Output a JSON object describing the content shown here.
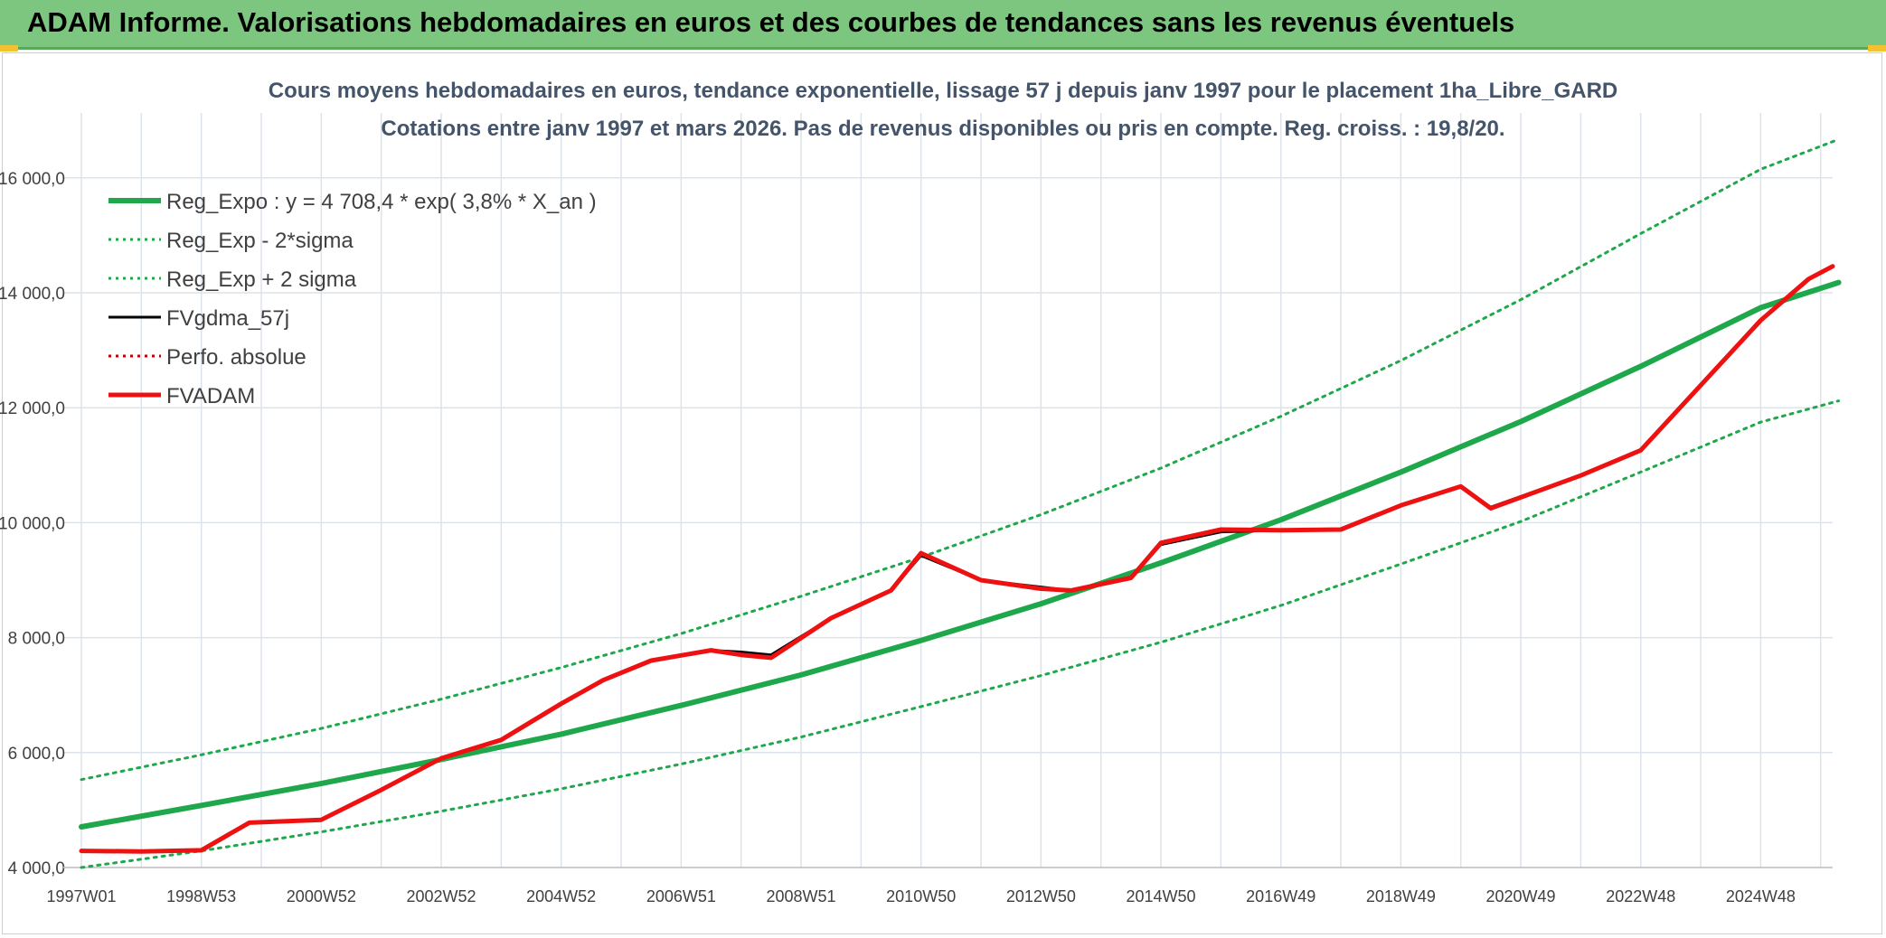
{
  "header": {
    "title": "ADAM Informe. Valorisations hebdomadaires en euros et des courbes de tendances sans les revenus éventuels",
    "bg_color": "#7dc67f",
    "accent_color": "#f2c230"
  },
  "chart_data": {
    "type": "line",
    "title_line1": "Cours moyens hebdomadaires en euros, tendance exponentielle, lissage 57 j depuis janv 1997 pour le placement 1ha_Libre_GARD",
    "title_line2": "Cotations entre janv 1997 et mars 2026. Pas de revenus disponibles ou pris en compte. Reg. croiss. : 19,8/20.",
    "xlabel": "",
    "ylabel": "",
    "xlim": [
      1997.0,
      2026.2
    ],
    "ylim": [
      4000,
      16500
    ],
    "grid": true,
    "legend_position": "top-left",
    "y_ticks": [
      {
        "value": 4000,
        "label": "4 000,0"
      },
      {
        "value": 6000,
        "label": "6 000,0"
      },
      {
        "value": 8000,
        "label": "8 000,0"
      },
      {
        "value": 10000,
        "label": "10 000,0"
      },
      {
        "value": 12000,
        "label": "12 000,0"
      },
      {
        "value": 14000,
        "label": "14 000,0"
      },
      {
        "value": 16000,
        "label": "16 000,0"
      }
    ],
    "x_ticks": [
      {
        "value": 1997.0,
        "label": "1997W01"
      },
      {
        "value": 1999.0,
        "label": "1998W53"
      },
      {
        "value": 2001.0,
        "label": "2000W52"
      },
      {
        "value": 2003.0,
        "label": "2002W52"
      },
      {
        "value": 2005.0,
        "label": "2004W52"
      },
      {
        "value": 2007.0,
        "label": "2006W51"
      },
      {
        "value": 2009.0,
        "label": "2008W51"
      },
      {
        "value": 2011.0,
        "label": "2010W50"
      },
      {
        "value": 2013.0,
        "label": "2012W50"
      },
      {
        "value": 2015.0,
        "label": "2014W50"
      },
      {
        "value": 2017.0,
        "label": "2016W49"
      },
      {
        "value": 2019.0,
        "label": "2018W49"
      },
      {
        "value": 2021.0,
        "label": "2020W49"
      },
      {
        "value": 2023.0,
        "label": "2022W48"
      },
      {
        "value": 2025.0,
        "label": "2024W48"
      }
    ],
    "x_minor_ticks": [
      1998.0,
      2000.0,
      2002.0,
      2004.0,
      2006.0,
      2008.0,
      2010.0,
      2012.0,
      2014.0,
      2016.0,
      2018.0,
      2020.0,
      2022.0,
      2024.0,
      2026.0
    ],
    "series": [
      {
        "name": "Reg_Expo : y = 4 708,4 * exp( 3,8% *  X_an )",
        "color": "#1ea84b",
        "style": "solid",
        "width": 6,
        "x": [
          1997.0,
          1999.0,
          2001.0,
          2003.0,
          2005.0,
          2007.0,
          2009.0,
          2011.0,
          2013.0,
          2015.0,
          2017.0,
          2019.0,
          2021.0,
          2023.0,
          2025.0,
          2026.3
        ],
        "values": [
          4708,
          5080,
          5460,
          5880,
          6320,
          6820,
          7350,
          7950,
          8590,
          9300,
          10050,
          10880,
          11760,
          12720,
          13740,
          14180
        ]
      },
      {
        "name": "Reg_Exp - 2*sigma",
        "color": "#1ea84b",
        "style": "dotted",
        "width": 3,
        "x": [
          1997.0,
          1999.0,
          2001.0,
          2003.0,
          2005.0,
          2007.0,
          2009.0,
          2011.0,
          2013.0,
          2015.0,
          2017.0,
          2019.0,
          2021.0,
          2023.0,
          2025.0,
          2026.3
        ],
        "values": [
          4000,
          4290,
          4620,
          4980,
          5370,
          5800,
          6270,
          6800,
          7340,
          7920,
          8560,
          9280,
          10020,
          10880,
          11750,
          12120
        ]
      },
      {
        "name": "Reg_Exp + 2 sigma",
        "color": "#1ea84b",
        "style": "dotted",
        "width": 3,
        "x": [
          1997.0,
          1999.0,
          2001.0,
          2003.0,
          2005.0,
          2007.0,
          2009.0,
          2011.0,
          2013.0,
          2015.0,
          2017.0,
          2019.0,
          2021.0,
          2023.0,
          2025.0,
          2026.3
        ],
        "values": [
          5530,
          5960,
          6420,
          6930,
          7480,
          8070,
          8720,
          9400,
          10140,
          10950,
          11850,
          12820,
          13880,
          15030,
          16150,
          16670
        ]
      },
      {
        "name": "FVgdma_57j",
        "color": "#000000",
        "style": "solid",
        "width": 3,
        "x": [
          1997.0,
          1998.0,
          1999.0,
          1999.8,
          2001.0,
          2002.0,
          2003.0,
          2004.0,
          2005.0,
          2005.7,
          2006.5,
          2007.5,
          2008.0,
          2008.5,
          2009.5,
          2010.5,
          2011.0,
          2012.0,
          2013.0,
          2013.5,
          2014.5,
          2015.0,
          2016.0,
          2017.0,
          2018.0,
          2019.0,
          2020.0,
          2020.5,
          2022.0,
          2023.0,
          2025.0,
          2025.8,
          2026.2
        ],
        "values": [
          4290,
          4280,
          4300,
          4780,
          4830,
          5350,
          5900,
          6220,
          6850,
          7260,
          7600,
          7780,
          7750,
          7700,
          8340,
          8820,
          9430,
          9000,
          8880,
          8820,
          9040,
          9620,
          9840,
          9870,
          9890,
          10300,
          10620,
          10270,
          10830,
          11270,
          13530,
          14240,
          14450
        ]
      },
      {
        "name": "Perfo. absolue",
        "color": "#c00000",
        "style": "dotted",
        "width": 2,
        "x": [],
        "values": []
      },
      {
        "name": "FVADAM",
        "color": "#ee1111",
        "style": "solid",
        "width": 5,
        "x": [
          1997.0,
          1998.0,
          1999.0,
          1999.8,
          2001.0,
          2002.0,
          2003.0,
          2004.0,
          2005.0,
          2005.7,
          2006.5,
          2007.5,
          2008.0,
          2008.5,
          2009.5,
          2010.5,
          2011.0,
          2012.0,
          2013.0,
          2013.5,
          2014.5,
          2015.0,
          2016.0,
          2017.0,
          2018.0,
          2019.0,
          2020.0,
          2020.5,
          2022.0,
          2023.0,
          2025.0,
          2025.8,
          2026.2
        ],
        "values": [
          4290,
          4280,
          4300,
          4780,
          4830,
          5350,
          5900,
          6220,
          6850,
          7260,
          7600,
          7780,
          7700,
          7650,
          8340,
          8820,
          9470,
          9000,
          8850,
          8820,
          9040,
          9650,
          9880,
          9870,
          9880,
          10300,
          10630,
          10250,
          10820,
          11260,
          13520,
          14240,
          14460
        ]
      }
    ]
  }
}
